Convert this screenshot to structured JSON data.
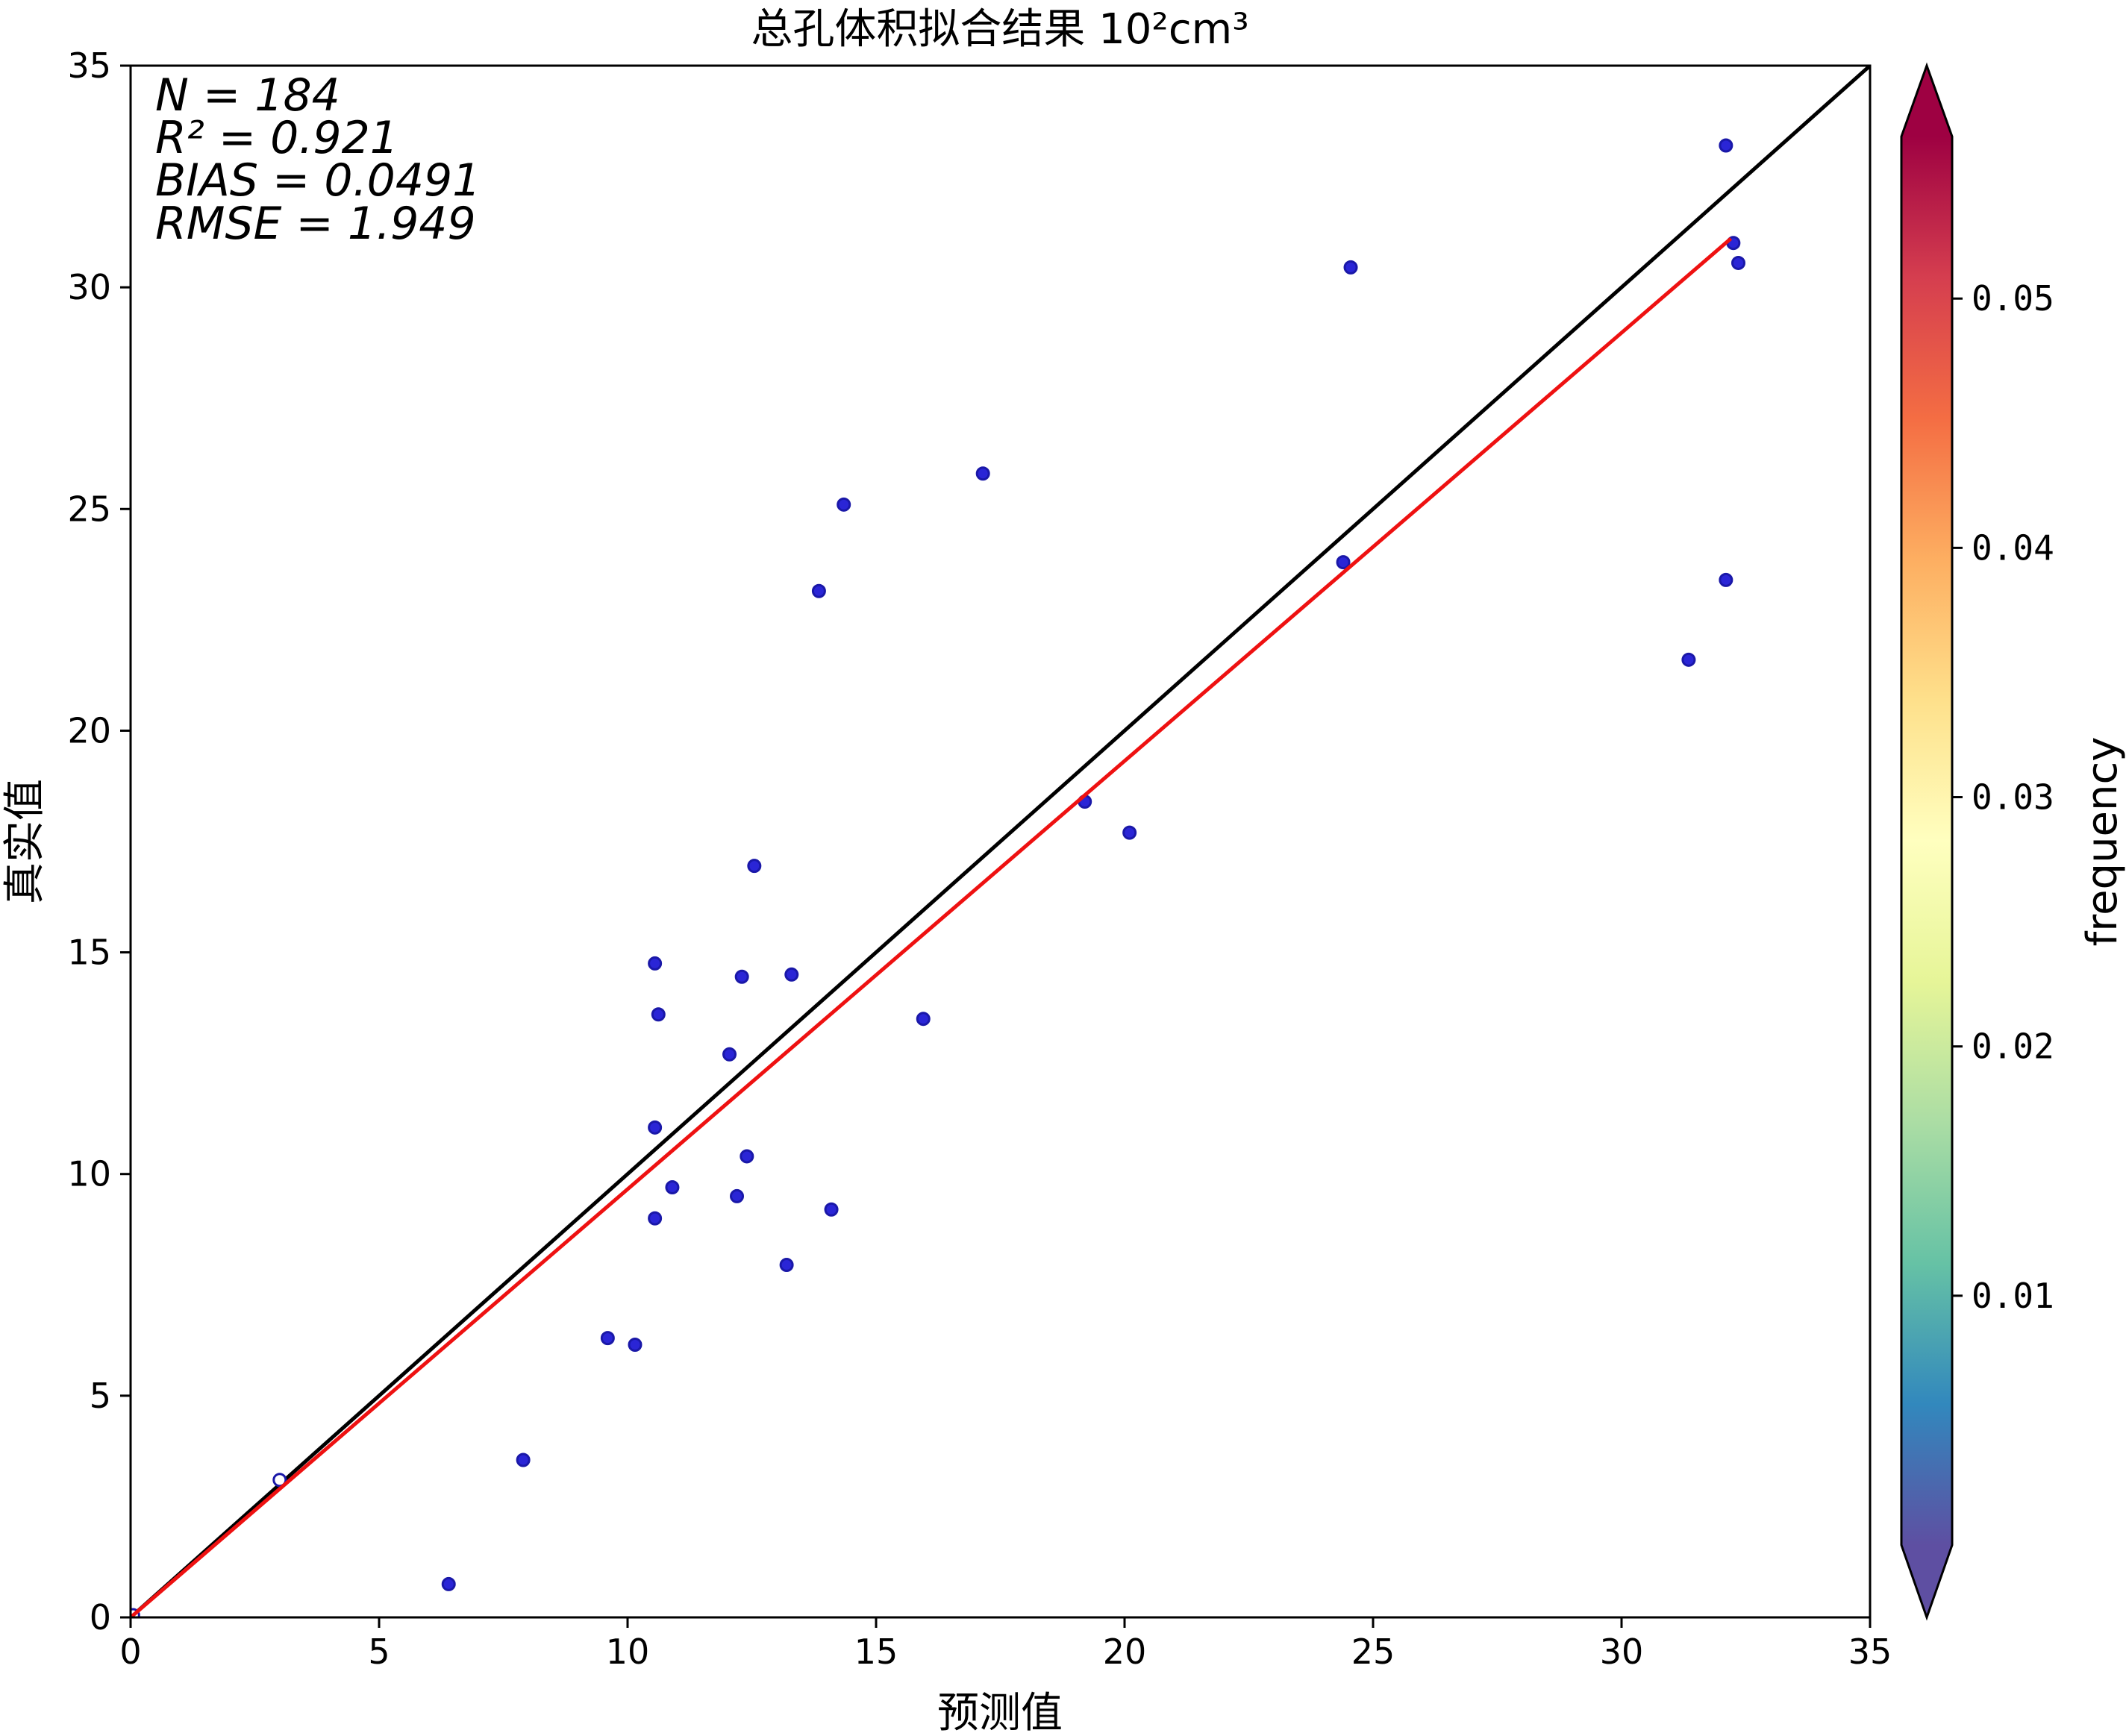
{
  "chart_data": {
    "type": "scatter",
    "title": "总孔体积拟合结果 10²cm³",
    "xlabel": "预测值",
    "ylabel": "真实值",
    "xlim": [
      0,
      35
    ],
    "ylim": [
      0,
      35
    ],
    "x_ticks": [
      "0",
      "5",
      "10",
      "15",
      "20",
      "25",
      "30",
      "35"
    ],
    "y_ticks": [
      "0",
      "5",
      "10",
      "15",
      "20",
      "25",
      "30",
      "35"
    ],
    "stats": {
      "n": "N = 184",
      "r2": "R² = 0.921",
      "bias": "BIAS = 0.0491",
      "rmse": "RMSE = 1.949"
    },
    "reference_line": {
      "x": [
        0,
        35
      ],
      "y": [
        0,
        35
      ],
      "color": "#000000"
    },
    "fit_line": {
      "x": [
        0,
        32.2
      ],
      "y": [
        0,
        31.1
      ],
      "color": "#ee1111"
    },
    "point_color": "#2a25d6",
    "points": [
      {
        "x": 0.05,
        "y": 0.05,
        "hollow": true
      },
      {
        "x": 3.0,
        "y": 3.1,
        "hollow": true
      },
      {
        "x": 6.4,
        "y": 0.75
      },
      {
        "x": 7.9,
        "y": 3.55
      },
      {
        "x": 9.6,
        "y": 6.3
      },
      {
        "x": 10.15,
        "y": 6.15
      },
      {
        "x": 10.55,
        "y": 9.0
      },
      {
        "x": 10.55,
        "y": 11.05
      },
      {
        "x": 10.55,
        "y": 14.75
      },
      {
        "x": 10.62,
        "y": 13.6
      },
      {
        "x": 10.9,
        "y": 9.7
      },
      {
        "x": 12.05,
        "y": 12.7
      },
      {
        "x": 12.2,
        "y": 9.5
      },
      {
        "x": 12.3,
        "y": 14.45
      },
      {
        "x": 12.4,
        "y": 10.4
      },
      {
        "x": 12.55,
        "y": 16.95
      },
      {
        "x": 13.2,
        "y": 7.95
      },
      {
        "x": 13.3,
        "y": 14.5
      },
      {
        "x": 13.85,
        "y": 23.15
      },
      {
        "x": 14.1,
        "y": 9.2
      },
      {
        "x": 14.35,
        "y": 25.1
      },
      {
        "x": 15.95,
        "y": 13.5
      },
      {
        "x": 17.15,
        "y": 25.8
      },
      {
        "x": 19.2,
        "y": 18.4
      },
      {
        "x": 20.1,
        "y": 17.7
      },
      {
        "x": 24.4,
        "y": 23.8
      },
      {
        "x": 24.55,
        "y": 30.45
      },
      {
        "x": 31.35,
        "y": 21.6
      },
      {
        "x": 32.1,
        "y": 33.2
      },
      {
        "x": 32.1,
        "y": 23.4
      },
      {
        "x": 32.25,
        "y": 31.0
      },
      {
        "x": 32.35,
        "y": 30.55
      }
    ],
    "colorbar": {
      "label": "frequency",
      "range": [
        0.0,
        0.0565
      ],
      "ticks": [
        0.01,
        0.02,
        0.03,
        0.04,
        0.05
      ],
      "tick_labels": [
        "0.01",
        "0.02",
        "0.03",
        "0.04",
        "0.05"
      ],
      "colormap": "Spectral_r",
      "extend": "both"
    }
  }
}
